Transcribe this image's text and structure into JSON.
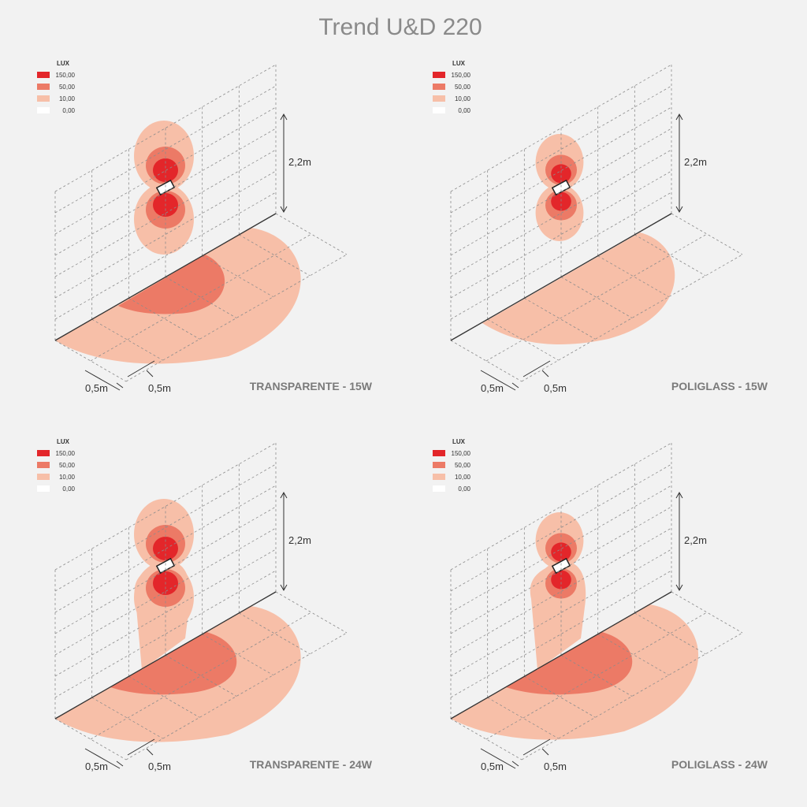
{
  "title": "Trend U&D 220",
  "panels": [
    {
      "legend": {
        "title": "LUX",
        "items": [
          {
            "label": "150,00",
            "color": "#e3262a"
          },
          {
            "label": "50,00",
            "color": "#ec7a66"
          },
          {
            "label": "10,00",
            "color": "#f7bfa8"
          },
          {
            "label": "0,00",
            "color": "#ffffff"
          }
        ]
      },
      "height_label": "2,2m",
      "dims": [
        "0,5m",
        "0,5m"
      ],
      "label": "TRANSPARENTE - 15W"
    },
    {
      "legend": {
        "title": "LUX",
        "items": [
          {
            "label": "150,00",
            "color": "#e3262a"
          },
          {
            "label": "50,00",
            "color": "#ec7a66"
          },
          {
            "label": "10,00",
            "color": "#f7bfa8"
          },
          {
            "label": "0,00",
            "color": "#ffffff"
          }
        ]
      },
      "height_label": "2,2m",
      "dims": [
        "0,5m",
        "0,5m"
      ],
      "label": "POLIGLASS - 15W"
    },
    {
      "legend": {
        "title": "LUX",
        "items": [
          {
            "label": "150,00",
            "color": "#e3262a"
          },
          {
            "label": "50,00",
            "color": "#ec7a66"
          },
          {
            "label": "10,00",
            "color": "#f7bfa8"
          },
          {
            "label": "0,00",
            "color": "#ffffff"
          }
        ]
      },
      "height_label": "2,2m",
      "dims": [
        "0,5m",
        "0,5m"
      ],
      "label": "TRANSPARENTE - 24W"
    },
    {
      "legend": {
        "title": "LUX",
        "items": [
          {
            "label": "150,00",
            "color": "#e3262a"
          },
          {
            "label": "50,00",
            "color": "#ec7a66"
          },
          {
            "label": "10,00",
            "color": "#f7bfa8"
          },
          {
            "label": "0,00",
            "color": "#ffffff"
          }
        ]
      },
      "height_label": "2,2m",
      "dims": [
        "0,5m",
        "0,5m"
      ],
      "label": "POLIGLASS - 24W"
    }
  ]
}
